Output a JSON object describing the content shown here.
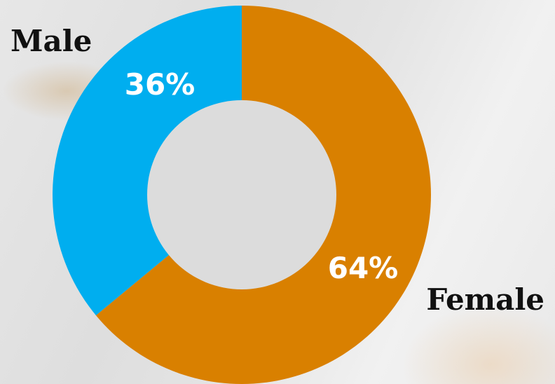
{
  "chart_data": {
    "type": "pie",
    "variant": "donut",
    "categories": [
      "Male",
      "Female"
    ],
    "values": [
      36,
      64
    ],
    "value_labels": [
      "36%",
      "64%"
    ],
    "colors": [
      "#00aeef",
      "#d98000"
    ],
    "start_angle": "12 o'clock",
    "legend": "none"
  }
}
